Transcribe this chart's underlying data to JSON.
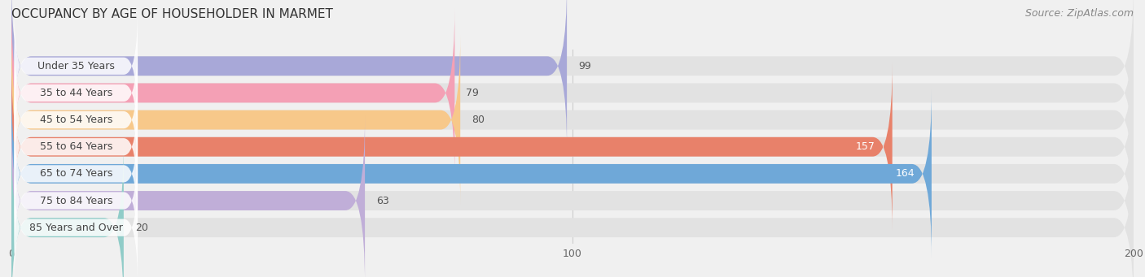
{
  "title": "OCCUPANCY BY AGE OF HOUSEHOLDER IN MARMET",
  "source": "Source: ZipAtlas.com",
  "categories": [
    "Under 35 Years",
    "35 to 44 Years",
    "45 to 54 Years",
    "55 to 64 Years",
    "65 to 74 Years",
    "75 to 84 Years",
    "85 Years and Over"
  ],
  "values": [
    99,
    79,
    80,
    157,
    164,
    63,
    20
  ],
  "bar_colors": [
    "#a8a8d8",
    "#f4a0b5",
    "#f7c88a",
    "#e8816a",
    "#6fa8d8",
    "#c0aed8",
    "#90ccc8"
  ],
  "value_inside": [
    false,
    false,
    false,
    true,
    true,
    false,
    false
  ],
  "xlim": [
    0,
    200
  ],
  "xticks": [
    0,
    100,
    200
  ],
  "background_color": "#f0f0f0",
  "bar_bg_color": "#e2e2e2",
  "title_fontsize": 11,
  "source_fontsize": 9,
  "label_fontsize": 9,
  "value_fontsize": 9,
  "bar_height": 0.72
}
